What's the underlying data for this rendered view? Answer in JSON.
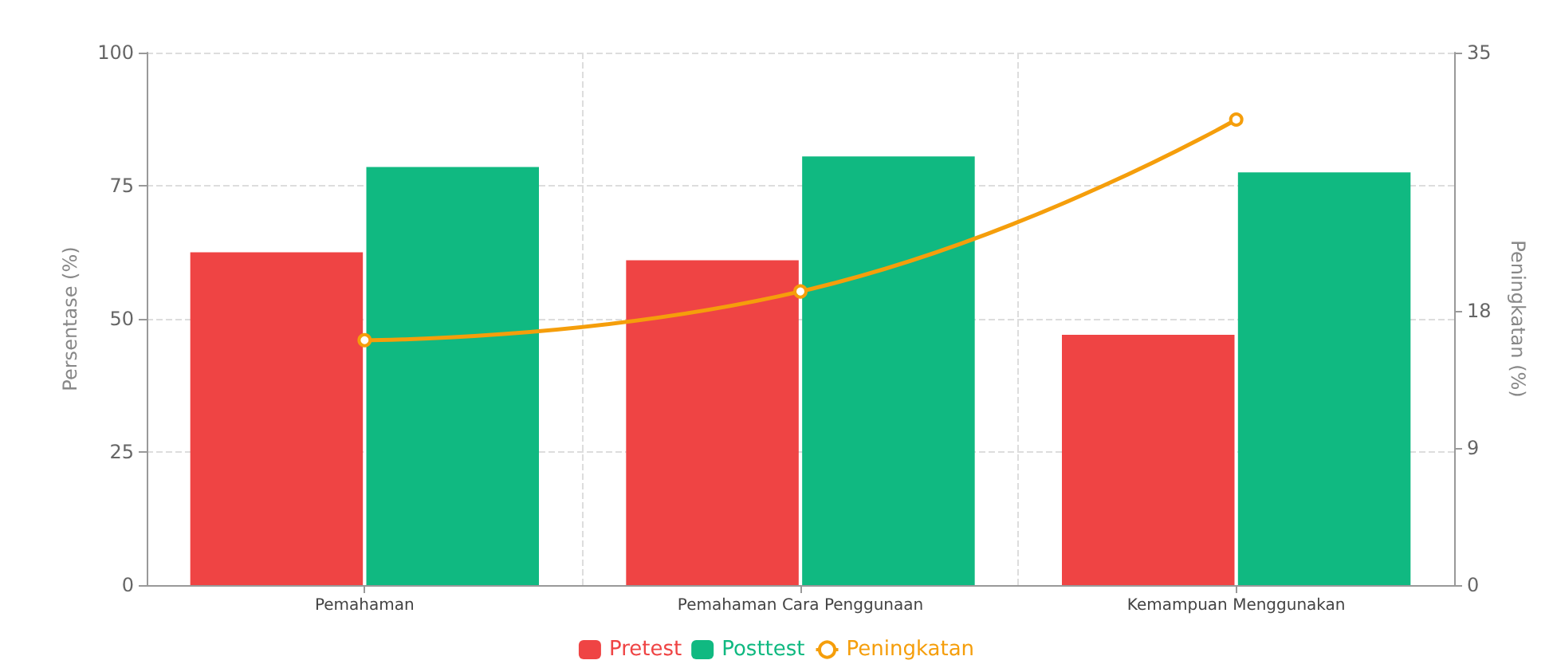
{
  "chart_data": {
    "type": "bar",
    "categories": [
      "Pemahaman",
      "Pemahaman Cara Penggunaan",
      "Kemampuan Menggunakan"
    ],
    "series": [
      {
        "name": "Pretest",
        "color": "#ef4444",
        "values": [
          62.5,
          61,
          47
        ]
      },
      {
        "name": "Posttest",
        "color": "#10b981",
        "values": [
          78.5,
          80.5,
          77.5
        ]
      },
      {
        "name": "Peningkatan",
        "type": "line",
        "axis": "y2",
        "color": "#f59e0b",
        "values": [
          16.1,
          19.3,
          30.6
        ]
      }
    ],
    "ylabel": "Persentase (%)",
    "y2label": "Peningkatan (%)",
    "ylim": [
      0,
      100
    ],
    "yticks": [
      0,
      25,
      50,
      75,
      100
    ],
    "y2lim": [
      0,
      35
    ],
    "y2ticks": [
      0,
      9,
      18,
      35
    ],
    "grid": true,
    "legend": "bottom",
    "marker": "circle"
  }
}
